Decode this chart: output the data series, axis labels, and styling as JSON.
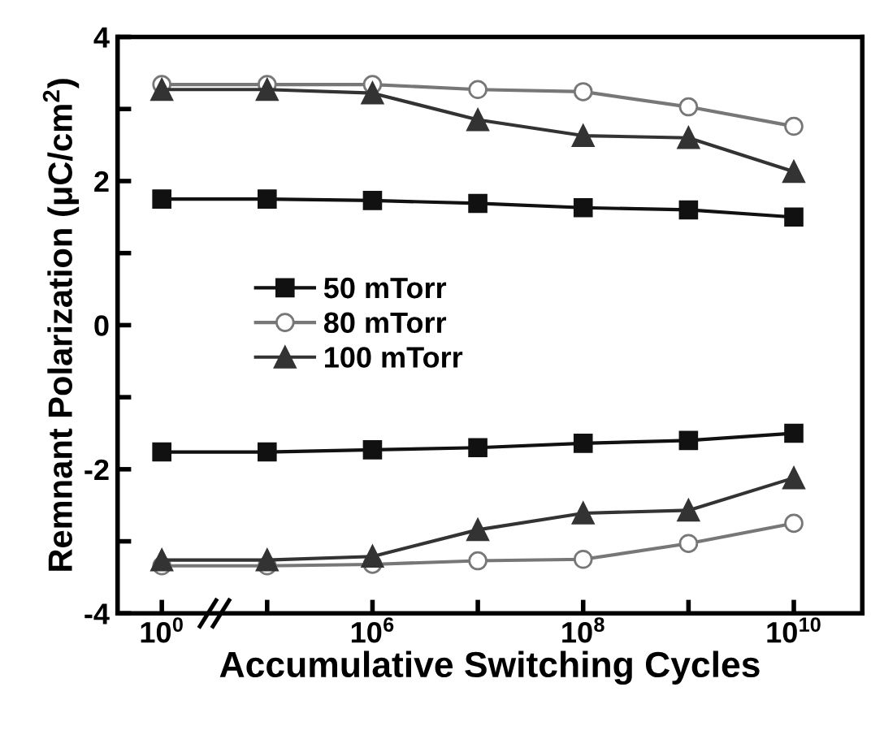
{
  "chart_data": {
    "type": "line",
    "xlabel": "Accumulative Switching Cycles",
    "ylabel": "Remnant Polarization (μC/cm$^{2}$)",
    "categories": [
      "10$^{0}$",
      null,
      "10$^{6}$",
      null,
      "10$^{8}$",
      null,
      "10$^{10}$"
    ],
    "ylim": [
      -4,
      4
    ],
    "yticks": [
      -4,
      {
        "value": -3,
        "label": null
      },
      -2,
      {
        "value": -1,
        "label": null
      },
      0,
      {
        "value": 1,
        "label": null
      },
      2,
      {
        "value": 3,
        "label": null
      },
      4
    ],
    "legend": "center left",
    "grid": false,
    "series": [
      {
        "name": "50 mTorr",
        "color": "#111111",
        "marker": "square",
        "values": [
          1.75,
          1.75,
          1.73,
          1.69,
          1.63,
          1.6,
          1.5
        ]
      },
      {
        "name": "80 mTorr",
        "color": "#777777",
        "marker": "circle",
        "values": [
          3.34,
          3.34,
          3.34,
          3.27,
          3.24,
          3.03,
          2.76
        ]
      },
      {
        "name": "100 mTorr",
        "color": "#333333",
        "marker": "triangle",
        "values": [
          3.27,
          3.27,
          3.22,
          2.85,
          2.63,
          2.6,
          2.13
        ]
      },
      {
        "color": "#111111",
        "marker": "square",
        "values": [
          -1.76,
          -1.76,
          -1.73,
          -1.7,
          -1.64,
          -1.6,
          -1.5
        ]
      },
      {
        "color": "#777777",
        "marker": "circle",
        "values": [
          -3.34,
          -3.34,
          -3.32,
          -3.27,
          -3.25,
          -3.03,
          -2.75
        ]
      },
      {
        "color": "#333333",
        "marker": "triangle",
        "values": [
          -3.26,
          -3.26,
          -3.21,
          -2.84,
          -2.61,
          -2.57,
          -2.12
        ]
      }
    ]
  }
}
